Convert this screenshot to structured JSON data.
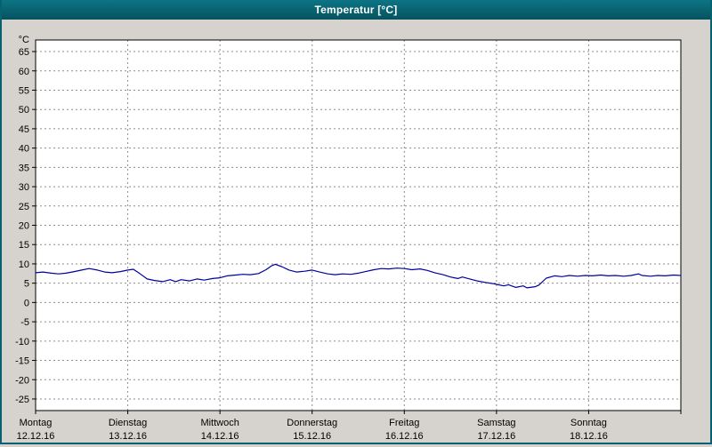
{
  "titlebar": {
    "title": "Temperatur [°C]"
  },
  "chart_data": {
    "type": "line",
    "title": "Temperatur [°C]",
    "ylabel": "°C",
    "xlabel": "",
    "grid": "dashed",
    "legend": "none",
    "ylim": [
      -28,
      68
    ],
    "y_ticks": [
      65,
      60,
      55,
      50,
      45,
      40,
      35,
      30,
      25,
      20,
      15,
      10,
      5,
      0,
      -5,
      -10,
      -15,
      -20,
      -25
    ],
    "x_range_days": [
      0,
      7
    ],
    "x_days": [
      {
        "name": "Montag",
        "date": "12.12.16"
      },
      {
        "name": "Dienstag",
        "date": "13.12.16"
      },
      {
        "name": "Mittwoch",
        "date": "14.12.16"
      },
      {
        "name": "Donnerstag",
        "date": "15.12.16"
      },
      {
        "name": "Freitag",
        "date": "16.12.16"
      },
      {
        "name": "Samstag",
        "date": "17.12.16"
      },
      {
        "name": "Sonntag",
        "date": "18.12.16"
      }
    ],
    "colors": {
      "titlebar_top": "#0c7585",
      "titlebar_bottom": "#06525e",
      "panel_bg": "#d6d3ce",
      "plot_bg": "#ffffff",
      "frame": "#000000",
      "grid": "#8c8c8c",
      "line": "#0000a0",
      "text": "#000000"
    },
    "series": [
      {
        "name": "Temperatur",
        "unit": "°C",
        "color": "#0000a0",
        "points": [
          [
            0.0,
            7.7
          ],
          [
            0.08,
            7.9
          ],
          [
            0.17,
            7.6
          ],
          [
            0.25,
            7.4
          ],
          [
            0.33,
            7.6
          ],
          [
            0.42,
            8.0
          ],
          [
            0.5,
            8.4
          ],
          [
            0.58,
            8.8
          ],
          [
            0.67,
            8.4
          ],
          [
            0.75,
            7.9
          ],
          [
            0.83,
            7.7
          ],
          [
            0.92,
            8.0
          ],
          [
            1.0,
            8.4
          ],
          [
            1.06,
            8.6
          ],
          [
            1.13,
            7.5
          ],
          [
            1.21,
            6.1
          ],
          [
            1.29,
            5.7
          ],
          [
            1.38,
            5.4
          ],
          [
            1.46,
            5.9
          ],
          [
            1.52,
            5.4
          ],
          [
            1.58,
            5.9
          ],
          [
            1.67,
            5.6
          ],
          [
            1.75,
            6.1
          ],
          [
            1.83,
            5.8
          ],
          [
            1.92,
            6.2
          ],
          [
            2.0,
            6.4
          ],
          [
            2.08,
            6.9
          ],
          [
            2.17,
            7.1
          ],
          [
            2.25,
            7.3
          ],
          [
            2.33,
            7.2
          ],
          [
            2.42,
            7.5
          ],
          [
            2.5,
            8.5
          ],
          [
            2.56,
            9.5
          ],
          [
            2.6,
            9.9
          ],
          [
            2.67,
            9.3
          ],
          [
            2.75,
            8.4
          ],
          [
            2.83,
            7.9
          ],
          [
            2.92,
            8.1
          ],
          [
            3.0,
            8.4
          ],
          [
            3.08,
            7.9
          ],
          [
            3.17,
            7.4
          ],
          [
            3.25,
            7.2
          ],
          [
            3.33,
            7.4
          ],
          [
            3.42,
            7.3
          ],
          [
            3.5,
            7.6
          ],
          [
            3.58,
            8.0
          ],
          [
            3.67,
            8.5
          ],
          [
            3.75,
            8.8
          ],
          [
            3.83,
            8.7
          ],
          [
            3.92,
            8.9
          ],
          [
            4.0,
            8.8
          ],
          [
            4.08,
            8.5
          ],
          [
            4.17,
            8.7
          ],
          [
            4.25,
            8.3
          ],
          [
            4.33,
            7.7
          ],
          [
            4.42,
            7.2
          ],
          [
            4.5,
            6.6
          ],
          [
            4.58,
            6.2
          ],
          [
            4.63,
            6.6
          ],
          [
            4.71,
            6.1
          ],
          [
            4.79,
            5.6
          ],
          [
            4.88,
            5.2
          ],
          [
            4.96,
            4.9
          ],
          [
            5.0,
            4.7
          ],
          [
            5.08,
            4.3
          ],
          [
            5.13,
            4.6
          ],
          [
            5.21,
            3.9
          ],
          [
            5.29,
            4.3
          ],
          [
            5.33,
            3.8
          ],
          [
            5.42,
            4.1
          ],
          [
            5.46,
            4.5
          ],
          [
            5.54,
            6.3
          ],
          [
            5.63,
            6.9
          ],
          [
            5.71,
            6.7
          ],
          [
            5.79,
            7.0
          ],
          [
            5.88,
            6.8
          ],
          [
            5.96,
            7.0
          ],
          [
            6.04,
            6.9
          ],
          [
            6.13,
            7.1
          ],
          [
            6.21,
            6.9
          ],
          [
            6.29,
            7.0
          ],
          [
            6.38,
            6.8
          ],
          [
            6.46,
            7.0
          ],
          [
            6.54,
            7.4
          ],
          [
            6.58,
            7.0
          ],
          [
            6.67,
            6.8
          ],
          [
            6.75,
            7.0
          ],
          [
            6.83,
            6.9
          ],
          [
            6.92,
            7.1
          ],
          [
            7.0,
            7.0
          ]
        ]
      }
    ]
  }
}
